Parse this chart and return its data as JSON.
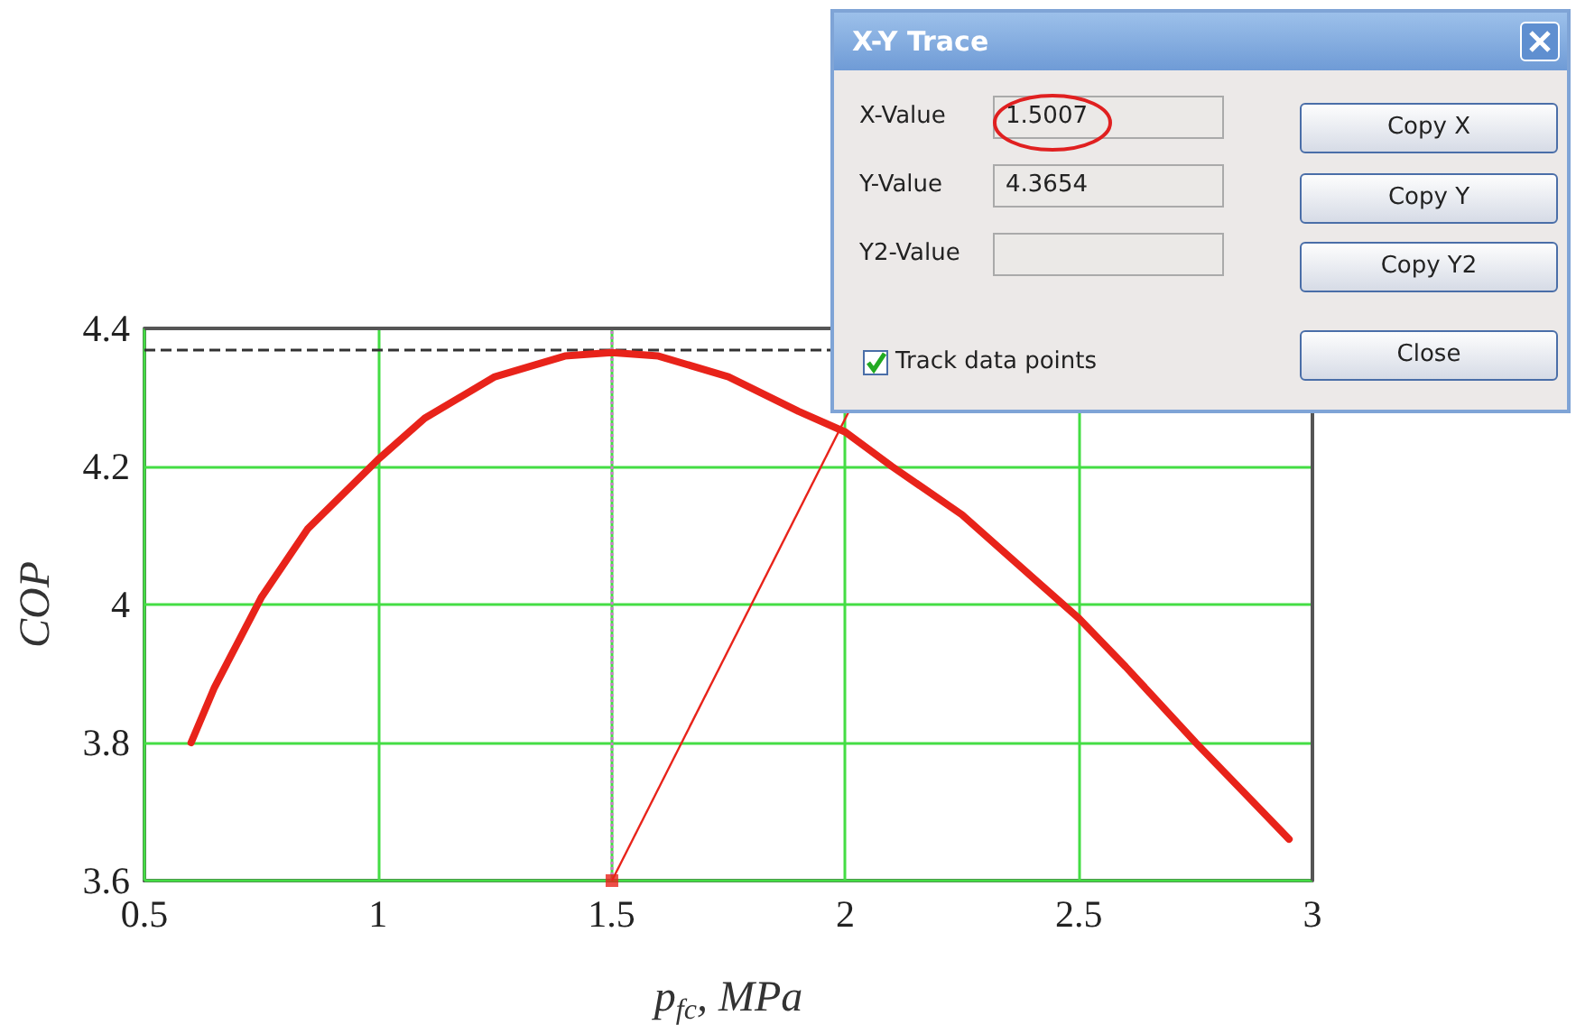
{
  "chart_data": {
    "type": "line",
    "xlabel": "p$_{fc}$, MPa",
    "ylabel": "COP",
    "series": [
      {
        "color": "#e8231a",
        "x": [
          0.6,
          0.65,
          0.75,
          0.85,
          1.0,
          1.1,
          1.25,
          1.4,
          1.5,
          1.6,
          1.75,
          1.9,
          2.0,
          2.1,
          2.25,
          2.4,
          2.5,
          2.6,
          2.75,
          2.85,
          2.95
        ],
        "values": [
          3.8,
          3.88,
          4.01,
          4.11,
          4.21,
          4.27,
          4.33,
          4.36,
          4.365,
          4.36,
          4.33,
          4.28,
          4.25,
          4.2,
          4.13,
          4.04,
          3.98,
          3.91,
          3.8,
          3.73,
          3.66
        ]
      },
      {
        "type": "scatter",
        "marker": "square",
        "color": "#e8231a",
        "x": [
          1.5007
        ],
        "values": [
          3.6
        ]
      }
    ],
    "xlim": [
      0.5,
      3
    ],
    "xticks": [
      0.5,
      1,
      1.5,
      2,
      2.5,
      3
    ],
    "ylim": [
      3.6,
      4.4
    ],
    "yticks": [
      3.6,
      3.8,
      4,
      4.2,
      4.4
    ],
    "grid": true,
    "marker": "none",
    "line_style": "solid",
    "ref_lines": [
      {
        "axis": "y",
        "value": 4.3654,
        "color": "#333333",
        "line_style": "dashed"
      },
      {
        "axis": "x",
        "value": 1.5007,
        "color": "#cc77cc",
        "line_style": "dotted"
      }
    ],
    "annotations": [
      "X-Y Trace",
      "X-Value",
      "1.5007",
      "Y-Value",
      "4.3654",
      "Y2-Value",
      "Copy X",
      "Copy Y",
      "Copy Y2",
      "Track data points",
      "Close"
    ]
  }
}
